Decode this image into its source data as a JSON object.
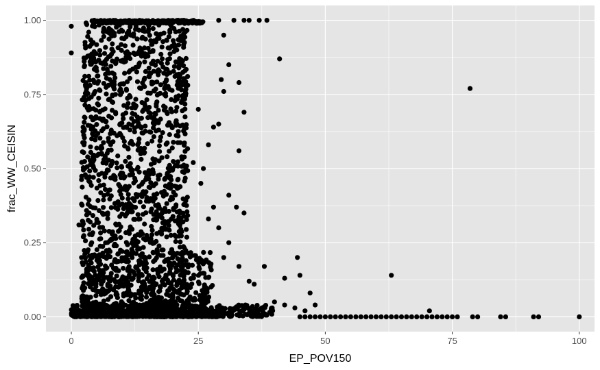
{
  "chart_data": {
    "type": "scatter",
    "xlabel": "EP_POV150",
    "ylabel": "frac_WW_CEISIN",
    "xlim": [
      -5,
      103
    ],
    "ylim": [
      -0.05,
      1.05
    ],
    "x_ticks": [
      0,
      25,
      50,
      75,
      100
    ],
    "x_tick_labels": [
      "0",
      "25",
      "50",
      "75",
      "100"
    ],
    "y_ticks": [
      0,
      0.25,
      0.5,
      0.75,
      1
    ],
    "y_tick_labels": [
      "0.00",
      "0.25",
      "0.50",
      "0.75",
      "1.00"
    ],
    "grid": true,
    "panel_color": "#e5e5e5",
    "grid_color": "#ffffff",
    "point_color": "#000000",
    "points": [
      [
        0,
        0.98
      ],
      [
        0,
        0.89
      ],
      [
        41,
        0.87
      ],
      [
        78.5,
        0.77
      ],
      [
        63,
        0.14
      ],
      [
        44.5,
        0.2
      ],
      [
        47,
        0.08
      ],
      [
        45,
        0.14
      ],
      [
        42,
        0.13
      ],
      [
        38,
        0.17
      ],
      [
        34,
        0.35
      ],
      [
        32.5,
        0.37
      ],
      [
        31,
        0.41
      ],
      [
        33,
        0.56
      ],
      [
        34,
        0.69
      ],
      [
        33,
        0.79
      ],
      [
        31,
        0.85
      ],
      [
        30,
        0.76
      ],
      [
        28,
        0.64
      ],
      [
        29,
        0.65
      ],
      [
        37,
        1
      ],
      [
        38.5,
        1
      ],
      [
        35,
        1
      ],
      [
        34,
        1
      ],
      [
        32,
        1
      ],
      [
        29,
        1
      ],
      [
        30,
        0.95
      ],
      [
        29.5,
        0.8
      ],
      [
        21,
        1
      ],
      [
        19,
        0.82
      ],
      [
        25,
        0.7
      ],
      [
        30,
        0.2
      ],
      [
        31,
        0.25
      ],
      [
        29,
        0.3
      ],
      [
        28,
        0.37
      ],
      [
        27,
        0.33
      ],
      [
        26,
        0.5
      ],
      [
        27,
        0.58
      ],
      [
        25.5,
        0.45
      ],
      [
        24,
        0.52
      ],
      [
        33,
        0.17
      ],
      [
        35,
        0.12
      ],
      [
        36,
        0.11
      ],
      [
        40,
        0.05
      ],
      [
        42,
        0.04
      ],
      [
        44,
        0.03
      ],
      [
        46,
        0.02
      ],
      [
        48,
        0.04
      ],
      [
        70.5,
        0.02
      ],
      [
        70,
        0
      ],
      [
        71,
        0
      ],
      [
        72,
        0
      ],
      [
        73,
        0
      ],
      [
        74,
        0
      ],
      [
        75,
        0
      ],
      [
        76,
        0
      ],
      [
        79,
        0
      ],
      [
        80,
        0
      ],
      [
        84.5,
        0
      ],
      [
        85.5,
        0
      ],
      [
        91,
        0
      ],
      [
        92,
        0
      ],
      [
        100,
        0
      ],
      [
        65,
        0
      ],
      [
        66,
        0
      ],
      [
        67,
        0
      ],
      [
        68,
        0
      ],
      [
        69,
        0
      ],
      [
        60,
        0
      ],
      [
        61,
        0
      ],
      [
        62,
        0
      ],
      [
        63,
        0
      ],
      [
        64,
        0
      ],
      [
        55,
        0
      ],
      [
        56,
        0
      ],
      [
        57,
        0
      ],
      [
        58,
        0
      ],
      [
        59,
        0
      ],
      [
        50,
        0
      ],
      [
        51,
        0
      ],
      [
        52,
        0
      ],
      [
        53,
        0
      ],
      [
        54,
        0
      ],
      [
        45,
        0
      ],
      [
        46,
        0
      ],
      [
        47,
        0
      ],
      [
        48,
        0
      ],
      [
        49,
        0
      ],
      [
        3,
        0.47
      ],
      [
        2,
        0.38
      ],
      [
        1.5,
        0.31
      ],
      [
        2,
        0.2
      ],
      [
        3,
        0.15
      ],
      [
        2.5,
        0.74
      ],
      [
        4,
        0.92
      ],
      [
        4.5,
        1
      ],
      [
        3,
        0.77
      ],
      [
        2.5,
        0.58
      ],
      [
        4,
        0.6
      ],
      [
        3.5,
        0.35
      ],
      [
        4,
        0.25
      ]
    ],
    "dense_regions": [
      {
        "x_range": [
          2,
          23
        ],
        "y_range": [
          0,
          1
        ],
        "count": 1400
      },
      {
        "x_range": [
          0,
          30
        ],
        "y_range": [
          0,
          0.02
        ],
        "count": 1200
      },
      {
        "x_range": [
          2,
          28
        ],
        "y_range": [
          0,
          0.22
        ],
        "count": 400
      },
      {
        "x_range": [
          0,
          40
        ],
        "y_range": [
          0,
          0.04
        ],
        "count": 350
      },
      {
        "x_range": [
          4,
          26
        ],
        "y_range": [
          0.99,
          1
        ],
        "count": 250
      }
    ]
  }
}
